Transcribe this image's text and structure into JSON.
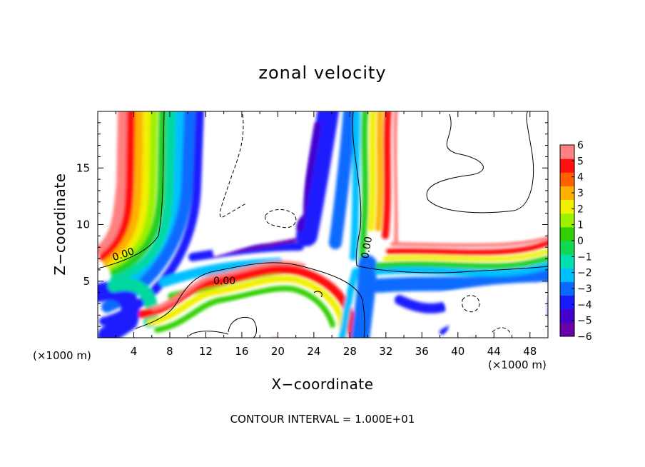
{
  "chart_data": {
    "type": "heatmap",
    "title": "zonal velocity",
    "xlabel": "X−coordinate",
    "ylabel": "Z−coordinate",
    "x_unit_note": "(×1000 m)",
    "x_ticks": [
      "4",
      "8",
      "12",
      "16",
      "20",
      "24",
      "28",
      "32",
      "36",
      "40",
      "44",
      "48"
    ],
    "y_ticks": [
      "5",
      "10",
      "15"
    ],
    "xlim": [
      0,
      50
    ],
    "ylim": [
      0,
      20
    ],
    "colorbar_ticks": [
      "6",
      "5",
      "4",
      "3",
      "2",
      "1",
      "0",
      "−1",
      "−2",
      "−3",
      "−4",
      "−5",
      "−6"
    ],
    "colorbar_range": [
      -6,
      6
    ],
    "colors": [
      "#6a00a8",
      "#4400cc",
      "#1a1aff",
      "#0a6aff",
      "#00bfff",
      "#00e0b0",
      "#10d850",
      "#30d000",
      "#9cf000",
      "#f0f000",
      "#ffb000",
      "#ff6000",
      "#ff1010",
      "#ff8080"
    ],
    "contour_labels": [
      "0.00",
      "0.00",
      "0.00"
    ],
    "footer": "CONTOUR INTERVAL = 1.000E+01"
  }
}
